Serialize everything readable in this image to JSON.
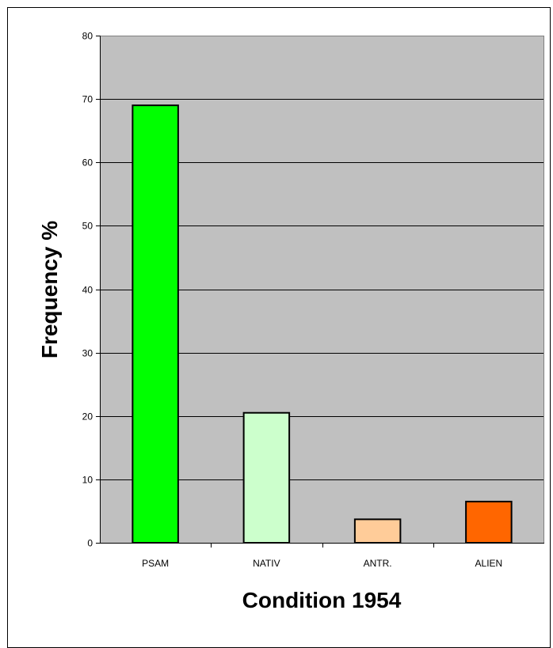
{
  "chart_data": {
    "type": "bar",
    "categories": [
      "PSAM",
      "NATIV",
      "ANTR.",
      "ALIEN"
    ],
    "values": [
      69,
      20.5,
      3.7,
      6.5
    ],
    "bar_colors": [
      "#00ff00",
      "#ccffcc",
      "#ffcc99",
      "#ff6600"
    ],
    "xlabel": "Condition 1954",
    "ylabel": "Frequency %",
    "ylim": [
      0,
      80
    ],
    "yticks": [
      0,
      10,
      20,
      30,
      40,
      50,
      60,
      70,
      80
    ],
    "plot_background": "#c0c0c0",
    "grid": true
  }
}
